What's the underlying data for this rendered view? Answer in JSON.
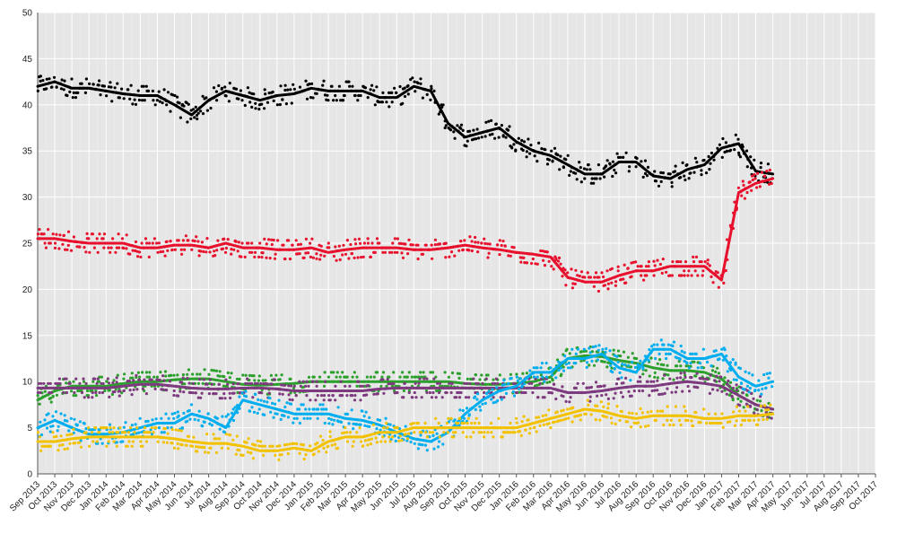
{
  "chart_data": {
    "type": "line",
    "title": "",
    "xlabel": "",
    "ylabel": "",
    "ylim": [
      0,
      50
    ],
    "yticks": [
      0,
      5,
      10,
      15,
      20,
      25,
      30,
      35,
      40,
      45,
      50
    ],
    "xlim": [
      "Sep 2013",
      "Oct 2017"
    ],
    "x_tick_labels": [
      "Sep 2013",
      "Oct 2013",
      "Nov 2013",
      "Dec 2013",
      "Jan 2014",
      "Feb 2014",
      "Mar 2014",
      "Apr 2014",
      "May 2014",
      "Jun 2014",
      "Jul 2014",
      "Aug 2014",
      "Sep 2014",
      "Oct 2014",
      "Nov 2014",
      "Dec 2014",
      "Jan 2015",
      "Feb 2015",
      "Mar 2015",
      "Apr 2015",
      "May 2015",
      "Jun 2015",
      "Jul 2015",
      "Aug 2015",
      "Sep 2015",
      "Oct 2015",
      "Nov 2015",
      "Dec 2015",
      "Jan 2016",
      "Feb 2016",
      "Mar 2016",
      "Apr 2016",
      "May 2016",
      "Jun 2016",
      "Jul 2016",
      "Aug 2016",
      "Sep 2016",
      "Oct 2016",
      "Nov 2016",
      "Dec 2016",
      "Jan 2017",
      "Feb 2017",
      "Mar 2017",
      "Apr 2017",
      "May 2017",
      "Jun 2017",
      "Jul 2017",
      "Aug 2017",
      "Sep 2017",
      "Oct 2017"
    ],
    "grid": true,
    "background": "#e6e6e6",
    "legend": "none",
    "series": [
      {
        "color": "#000000",
        "x": [
          "Sep 2013",
          "Oct 2013",
          "Nov 2013",
          "Dec 2013",
          "Jan 2014",
          "Feb 2014",
          "Mar 2014",
          "Apr 2014",
          "May 2014",
          "Jun 2014",
          "Jul 2014",
          "Aug 2014",
          "Sep 2014",
          "Oct 2014",
          "Nov 2014",
          "Dec 2014",
          "Jan 2015",
          "Feb 2015",
          "Mar 2015",
          "Apr 2015",
          "May 2015",
          "Jun 2015",
          "Jul 2015",
          "Aug 2015",
          "Sep 2015",
          "Oct 2015",
          "Nov 2015",
          "Dec 2015",
          "Jan 2016",
          "Feb 2016",
          "Mar 2016",
          "Apr 2016",
          "May 2016",
          "Jun 2016",
          "Jul 2016",
          "Aug 2016",
          "Sep 2016",
          "Oct 2016",
          "Nov 2016",
          "Dec 2016",
          "Jan 2017",
          "Feb 2017",
          "Mar 2017",
          "Apr 2017"
        ],
        "values": [
          42.0,
          42.5,
          41.8,
          41.8,
          41.5,
          41.2,
          41.0,
          41.0,
          40.0,
          38.9,
          40.5,
          41.5,
          41.0,
          40.5,
          41.0,
          41.2,
          41.8,
          41.5,
          41.5,
          41.5,
          40.8,
          40.8,
          42.0,
          41.5,
          38.0,
          36.5,
          37.0,
          37.5,
          36.0,
          35.0,
          34.5,
          33.5,
          32.5,
          32.5,
          33.8,
          33.8,
          32.3,
          32.0,
          33.0,
          33.5,
          35.3,
          35.8,
          32.8,
          32.5
        ]
      },
      {
        "color": "#e8112d",
        "x": [
          "Sep 2013",
          "Oct 2013",
          "Nov 2013",
          "Dec 2013",
          "Jan 2014",
          "Feb 2014",
          "Mar 2014",
          "Apr 2014",
          "May 2014",
          "Jun 2014",
          "Jul 2014",
          "Aug 2014",
          "Sep 2014",
          "Oct 2014",
          "Nov 2014",
          "Dec 2014",
          "Jan 2015",
          "Feb 2015",
          "Mar 2015",
          "Apr 2015",
          "May 2015",
          "Jun 2015",
          "Jul 2015",
          "Aug 2015",
          "Sep 2015",
          "Oct 2015",
          "Nov 2015",
          "Dec 2015",
          "Jan 2016",
          "Feb 2016",
          "Mar 2016",
          "Apr 2016",
          "May 2016",
          "Jun 2016",
          "Jul 2016",
          "Aug 2016",
          "Sep 2016",
          "Oct 2016",
          "Nov 2016",
          "Dec 2016",
          "Jan 2017",
          "Feb 2017",
          "Mar 2017",
          "Apr 2017"
        ],
        "values": [
          25.5,
          25.5,
          25.2,
          25.0,
          25.0,
          25.0,
          24.5,
          24.5,
          24.8,
          24.8,
          24.5,
          25.0,
          24.5,
          24.5,
          24.3,
          24.3,
          24.5,
          24.0,
          24.3,
          24.5,
          24.5,
          24.5,
          24.3,
          24.3,
          24.5,
          24.8,
          24.5,
          24.3,
          24.0,
          23.8,
          23.5,
          21.3,
          20.8,
          20.8,
          21.5,
          22.0,
          22.0,
          22.5,
          22.5,
          22.5,
          21.0,
          30.5,
          31.5,
          32.0
        ]
      },
      {
        "color": "#2ca02c",
        "x": [
          "Sep 2013",
          "Oct 2013",
          "Nov 2013",
          "Dec 2013",
          "Jan 2014",
          "Feb 2014",
          "Mar 2014",
          "Apr 2014",
          "May 2014",
          "Jun 2014",
          "Jul 2014",
          "Aug 2014",
          "Sep 2014",
          "Oct 2014",
          "Nov 2014",
          "Dec 2014",
          "Jan 2015",
          "Feb 2015",
          "Mar 2015",
          "Apr 2015",
          "May 2015",
          "Jun 2015",
          "Jul 2015",
          "Aug 2015",
          "Sep 2015",
          "Oct 2015",
          "Nov 2015",
          "Dec 2015",
          "Jan 2016",
          "Feb 2016",
          "Mar 2016",
          "Apr 2016",
          "May 2016",
          "Jun 2016",
          "Jul 2016",
          "Aug 2016",
          "Sep 2016",
          "Oct 2016",
          "Nov 2016",
          "Dec 2016",
          "Jan 2017",
          "Feb 2017",
          "Mar 2017",
          "Apr 2017"
        ],
        "values": [
          8.0,
          9.0,
          9.5,
          9.5,
          9.5,
          9.8,
          10.0,
          10.0,
          10.2,
          10.3,
          10.3,
          10.0,
          9.7,
          9.6,
          9.7,
          9.8,
          10.0,
          10.0,
          10.0,
          10.0,
          10.0,
          10.0,
          10.0,
          10.0,
          10.0,
          9.8,
          9.7,
          9.7,
          9.8,
          10.0,
          10.5,
          12.5,
          12.8,
          12.7,
          12.3,
          12.0,
          11.5,
          11.2,
          11.2,
          11.0,
          10.3,
          8.5,
          7.5,
          7.0
        ]
      },
      {
        "color": "#7e3a7e",
        "x": [
          "Sep 2013",
          "Oct 2013",
          "Nov 2013",
          "Dec 2013",
          "Jan 2014",
          "Feb 2014",
          "Mar 2014",
          "Apr 2014",
          "May 2014",
          "Jun 2014",
          "Jul 2014",
          "Aug 2014",
          "Sep 2014",
          "Oct 2014",
          "Nov 2014",
          "Dec 2014",
          "Jan 2015",
          "Feb 2015",
          "Mar 2015",
          "Apr 2015",
          "May 2015",
          "Jun 2015",
          "Jul 2015",
          "Aug 2015",
          "Sep 2015",
          "Oct 2015",
          "Nov 2015",
          "Dec 2015",
          "Jan 2016",
          "Feb 2016",
          "Mar 2016",
          "Apr 2016",
          "May 2016",
          "Jun 2016",
          "Jul 2016",
          "Aug 2016",
          "Sep 2016",
          "Oct 2016",
          "Nov 2016",
          "Dec 2016",
          "Jan 2017",
          "Feb 2017",
          "Mar 2017",
          "Apr 2017"
        ],
        "values": [
          9.3,
          9.3,
          9.3,
          9.3,
          9.3,
          9.5,
          9.7,
          9.7,
          9.5,
          9.3,
          9.2,
          9.2,
          9.3,
          9.3,
          9.2,
          9.0,
          9.0,
          9.0,
          9.0,
          9.0,
          9.2,
          9.3,
          9.3,
          9.3,
          9.3,
          9.3,
          9.3,
          9.3,
          9.3,
          9.3,
          9.3,
          8.8,
          8.8,
          9.0,
          9.3,
          9.5,
          9.5,
          9.8,
          10.0,
          9.8,
          9.5,
          8.5,
          7.5,
          7.0
        ]
      },
      {
        "color": "#00aeef",
        "x": [
          "Sep 2013",
          "Oct 2013",
          "Nov 2013",
          "Dec 2013",
          "Jan 2014",
          "Feb 2014",
          "Mar 2014",
          "Apr 2014",
          "May 2014",
          "Jun 2014",
          "Jul 2014",
          "Aug 2014",
          "Sep 2014",
          "Oct 2014",
          "Nov 2014",
          "Dec 2014",
          "Jan 2015",
          "Feb 2015",
          "Mar 2015",
          "Apr 2015",
          "May 2015",
          "Jun 2015",
          "Jul 2015",
          "Aug 2015",
          "Sep 2015",
          "Oct 2015",
          "Nov 2015",
          "Dec 2015",
          "Jan 2016",
          "Feb 2016",
          "Mar 2016",
          "Apr 2016",
          "May 2016",
          "Jun 2016",
          "Jul 2016",
          "Aug 2016",
          "Sep 2016",
          "Oct 2016",
          "Nov 2016",
          "Dec 2016",
          "Jan 2017",
          "Feb 2017",
          "Mar 2017",
          "Apr 2017"
        ],
        "values": [
          5.0,
          5.8,
          5.0,
          4.3,
          4.3,
          4.5,
          5.0,
          5.5,
          5.5,
          6.5,
          6.0,
          5.0,
          8.0,
          7.5,
          7.0,
          6.5,
          6.5,
          6.5,
          6.0,
          5.8,
          5.3,
          4.5,
          3.8,
          3.5,
          4.5,
          6.5,
          8.0,
          9.0,
          9.5,
          11.0,
          11.0,
          12.5,
          12.5,
          13.0,
          11.5,
          11.0,
          13.5,
          13.5,
          12.5,
          12.5,
          13.0,
          10.5,
          9.5,
          10.0
        ]
      },
      {
        "color": "#f2c200",
        "x": [
          "Sep 2013",
          "Oct 2013",
          "Nov 2013",
          "Dec 2013",
          "Jan 2014",
          "Feb 2014",
          "Mar 2014",
          "Apr 2014",
          "May 2014",
          "Jun 2014",
          "Jul 2014",
          "Aug 2014",
          "Sep 2014",
          "Oct 2014",
          "Nov 2014",
          "Dec 2014",
          "Jan 2015",
          "Feb 2015",
          "Mar 2015",
          "Apr 2015",
          "May 2015",
          "Jun 2015",
          "Jul 2015",
          "Aug 2015",
          "Sep 2015",
          "Oct 2015",
          "Nov 2015",
          "Dec 2015",
          "Jan 2016",
          "Feb 2016",
          "Mar 2016",
          "Apr 2016",
          "May 2016",
          "Jun 2016",
          "Jul 2016",
          "Aug 2016",
          "Sep 2016",
          "Oct 2016",
          "Nov 2016",
          "Dec 2016",
          "Jan 2017",
          "Feb 2017",
          "Mar 2017",
          "Apr 2017"
        ],
        "values": [
          3.5,
          3.5,
          3.8,
          4.0,
          4.0,
          4.0,
          4.0,
          4.0,
          3.8,
          3.5,
          3.3,
          3.3,
          3.0,
          2.5,
          2.5,
          2.8,
          2.5,
          3.5,
          4.0,
          4.0,
          4.5,
          4.5,
          5.0,
          5.0,
          5.0,
          5.0,
          5.0,
          5.0,
          5.0,
          5.5,
          6.0,
          6.5,
          7.0,
          6.8,
          6.3,
          6.0,
          6.3,
          6.3,
          6.3,
          6.0,
          6.0,
          6.3,
          6.3,
          6.5
        ]
      }
    ]
  }
}
